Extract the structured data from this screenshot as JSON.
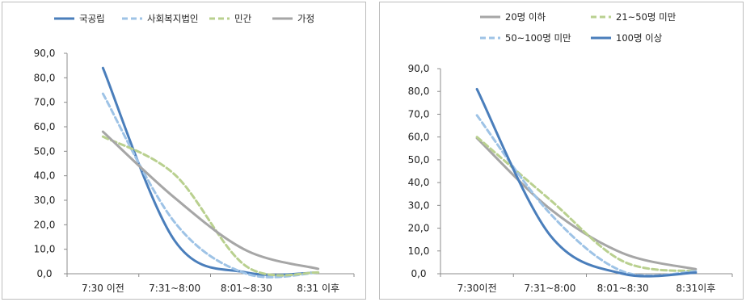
{
  "chart_data": [
    {
      "type": "line",
      "categories": [
        "7:30 이전",
        "7:31~8:00",
        "8:01~8:30",
        "8:31 이후"
      ],
      "ylim": [
        0,
        90
      ],
      "yticks": [
        "0,0",
        "10,0",
        "20,0",
        "30,0",
        "40,0",
        "50,0",
        "60,0",
        "70,0",
        "80,0",
        "90,0"
      ],
      "grid": false,
      "legend_position": "top",
      "series": [
        {
          "name": "국공립",
          "values": [
            84.0,
            13.5,
            0.5,
            0.5
          ],
          "color": "#4a7ebb",
          "dash": "solid"
        },
        {
          "name": "사회복지법인",
          "values": [
            73.5,
            21.0,
            0.0,
            0.5
          ],
          "color": "#9ec3e6",
          "dash": "dashed"
        },
        {
          "name": "민간",
          "values": [
            56.0,
            40.5,
            3.0,
            0.5
          ],
          "color": "#b9d08f",
          "dash": "dashed"
        },
        {
          "name": "가정",
          "values": [
            58.0,
            31.0,
            9.5,
            2.0
          ],
          "color": "#a6a6a6",
          "dash": "solid"
        }
      ]
    },
    {
      "type": "line",
      "categories": [
        "7:30이전",
        "7:31~8:00",
        "8:01~8:30",
        "8:31이후"
      ],
      "ylim": [
        0,
        90
      ],
      "yticks": [
        "0,0",
        "10,0",
        "20,0",
        "30,0",
        "40,0",
        "50,0",
        "60,0",
        "70,0",
        "80,0",
        "90,0"
      ],
      "grid": false,
      "legend_position": "top",
      "series": [
        {
          "name": "20명 이하",
          "values": [
            59.5,
            28.5,
            9.0,
            2.0
          ],
          "color": "#a6a6a6",
          "dash": "solid"
        },
        {
          "name": "21~50명 미만",
          "values": [
            60.0,
            32.5,
            5.5,
            1.0
          ],
          "color": "#b9d08f",
          "dash": "dashed"
        },
        {
          "name": "50~100명 미만",
          "values": [
            69.5,
            26.5,
            1.0,
            1.0
          ],
          "color": "#9ec3e6",
          "dash": "dashed"
        },
        {
          "name": "100명 이상",
          "values": [
            81.0,
            17.0,
            0.0,
            0.5
          ],
          "color": "#4a7ebb",
          "dash": "solid"
        }
      ]
    }
  ]
}
